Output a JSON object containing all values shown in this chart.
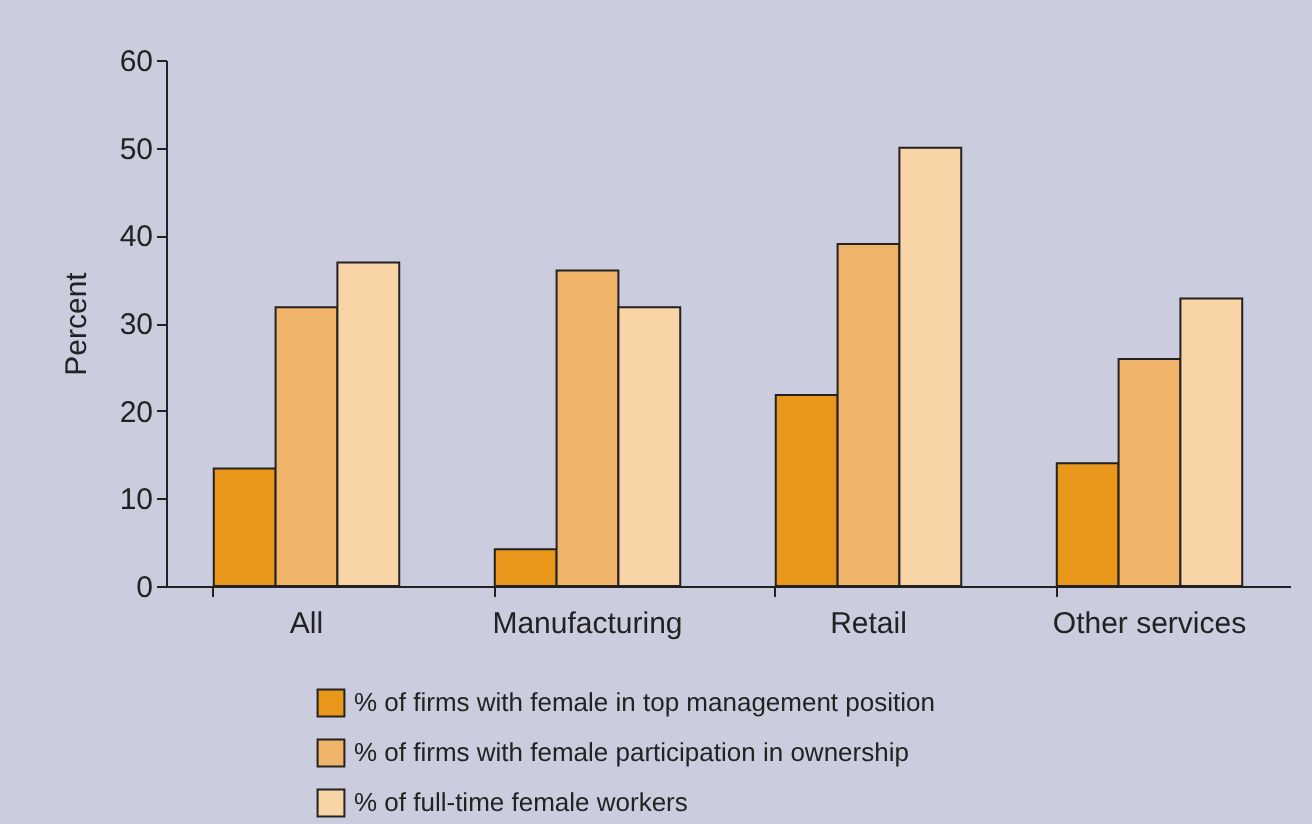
{
  "chart_data": {
    "type": "bar",
    "ylabel": "Percent",
    "categories": [
      "All",
      "Manufacturing",
      "Retail",
      "Other services"
    ],
    "series": [
      {
        "name": "% of firms with female in top management position",
        "color": "#e8971a",
        "values": [
          13.4,
          4.2,
          21.8,
          14.0
        ]
      },
      {
        "name": "% of firms with female participation in ownership",
        "color": "#efb469",
        "values": [
          31.8,
          36.0,
          39.0,
          25.9
        ]
      },
      {
        "name": "% of full-time female workers",
        "color": "#f8d4a6",
        "values": [
          36.9,
          31.8,
          50.0,
          32.8
        ]
      }
    ],
    "ylim": [
      0,
      60
    ],
    "yticks": [
      0,
      10,
      20,
      30,
      40,
      50,
      60
    ],
    "grid": false,
    "legend": "bottom"
  }
}
